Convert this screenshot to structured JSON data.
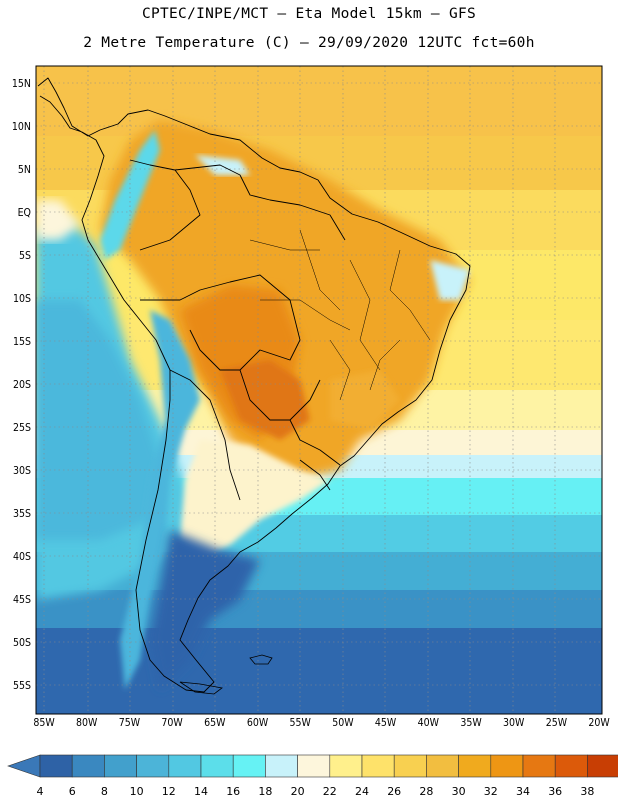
{
  "header": {
    "title_line1": "CPTEC/INPE/MCT –  Eta Model 15km – GFS",
    "title_line2": "2 Metre Temperature (C) – 29/09/2020 12UTC fct=60h"
  },
  "map": {
    "projection": "lat-lon",
    "lon_range": [
      -86,
      -20
    ],
    "lat_range": [
      -58,
      17
    ],
    "grid": true,
    "lat_ticks": [
      "15N",
      "10N",
      "5N",
      "EQ",
      "5S",
      "10S",
      "15S",
      "20S",
      "25S",
      "30S",
      "35S",
      "40S",
      "45S",
      "50S",
      "55S"
    ],
    "lon_ticks": [
      "85W",
      "80W",
      "75W",
      "70W",
      "65W",
      "60W",
      "55W",
      "50W",
      "45W",
      "40W",
      "35W",
      "30W",
      "25W",
      "20W"
    ]
  },
  "colorbar": {
    "labels": [
      "4",
      "6",
      "8",
      "10",
      "12",
      "14",
      "16",
      "18",
      "20",
      "22",
      "24",
      "26",
      "28",
      "30",
      "32",
      "34",
      "36",
      "38"
    ],
    "colors": [
      "#3a78b8",
      "#2e62a6",
      "#3a88c0",
      "#42a0cc",
      "#4cb4d8",
      "#52c8e2",
      "#5cdeea",
      "#66f2f4",
      "#c8f2fa",
      "#fdf6dc",
      "#fff08c",
      "#fee26a",
      "#f8d050",
      "#f2be40",
      "#f0aa1e",
      "#ee9614",
      "#e67812",
      "#dc5a0a",
      "#c83e04",
      "#a82e02"
    ],
    "units": "C"
  }
}
